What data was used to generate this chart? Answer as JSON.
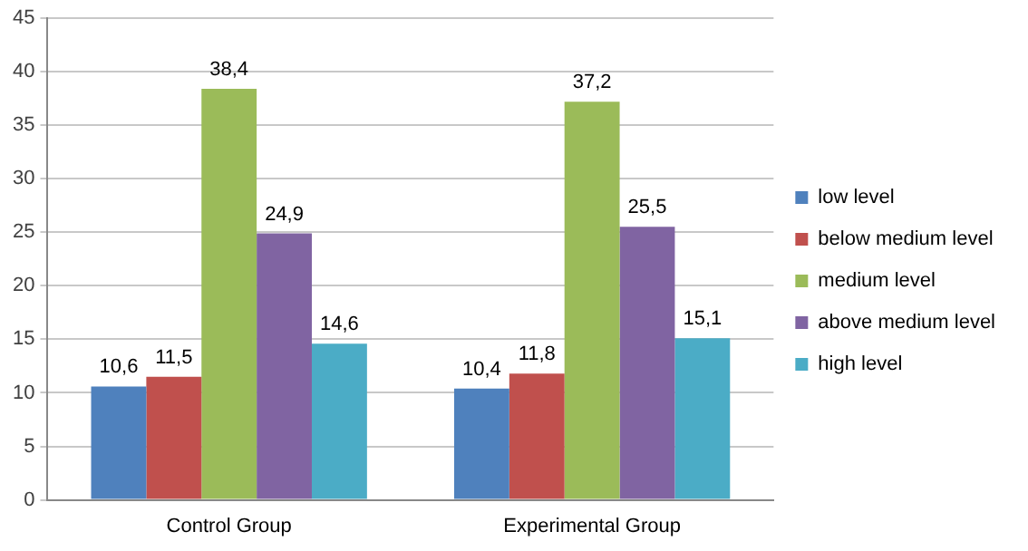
{
  "chart_data": {
    "type": "bar",
    "categories": [
      "Control Group",
      "Experimental Group"
    ],
    "series": [
      {
        "name": "low level",
        "color": "#4f81bd",
        "values": [
          10.6,
          10.4
        ],
        "value_labels": [
          "10,6",
          "10,4"
        ]
      },
      {
        "name": "below medium level",
        "color": "#c0504d",
        "values": [
          11.5,
          11.8
        ],
        "value_labels": [
          "11,5",
          "11,8"
        ]
      },
      {
        "name": "medium level",
        "color": "#9bbb59",
        "values": [
          38.4,
          37.2
        ],
        "value_labels": [
          "38,4",
          "37,2"
        ]
      },
      {
        "name": "above medium level",
        "color": "#8064a2",
        "values": [
          24.9,
          25.5
        ],
        "value_labels": [
          "24,9",
          "25,5"
        ]
      },
      {
        "name": "high level",
        "color": "#4bacc6",
        "values": [
          14.6,
          15.1
        ],
        "value_labels": [
          "14,6",
          "15,1"
        ]
      }
    ],
    "ylim": [
      0,
      45
    ],
    "yticks": [
      0,
      5,
      10,
      15,
      20,
      25,
      30,
      35,
      40,
      45
    ],
    "grid": "y",
    "legend": "right"
  }
}
